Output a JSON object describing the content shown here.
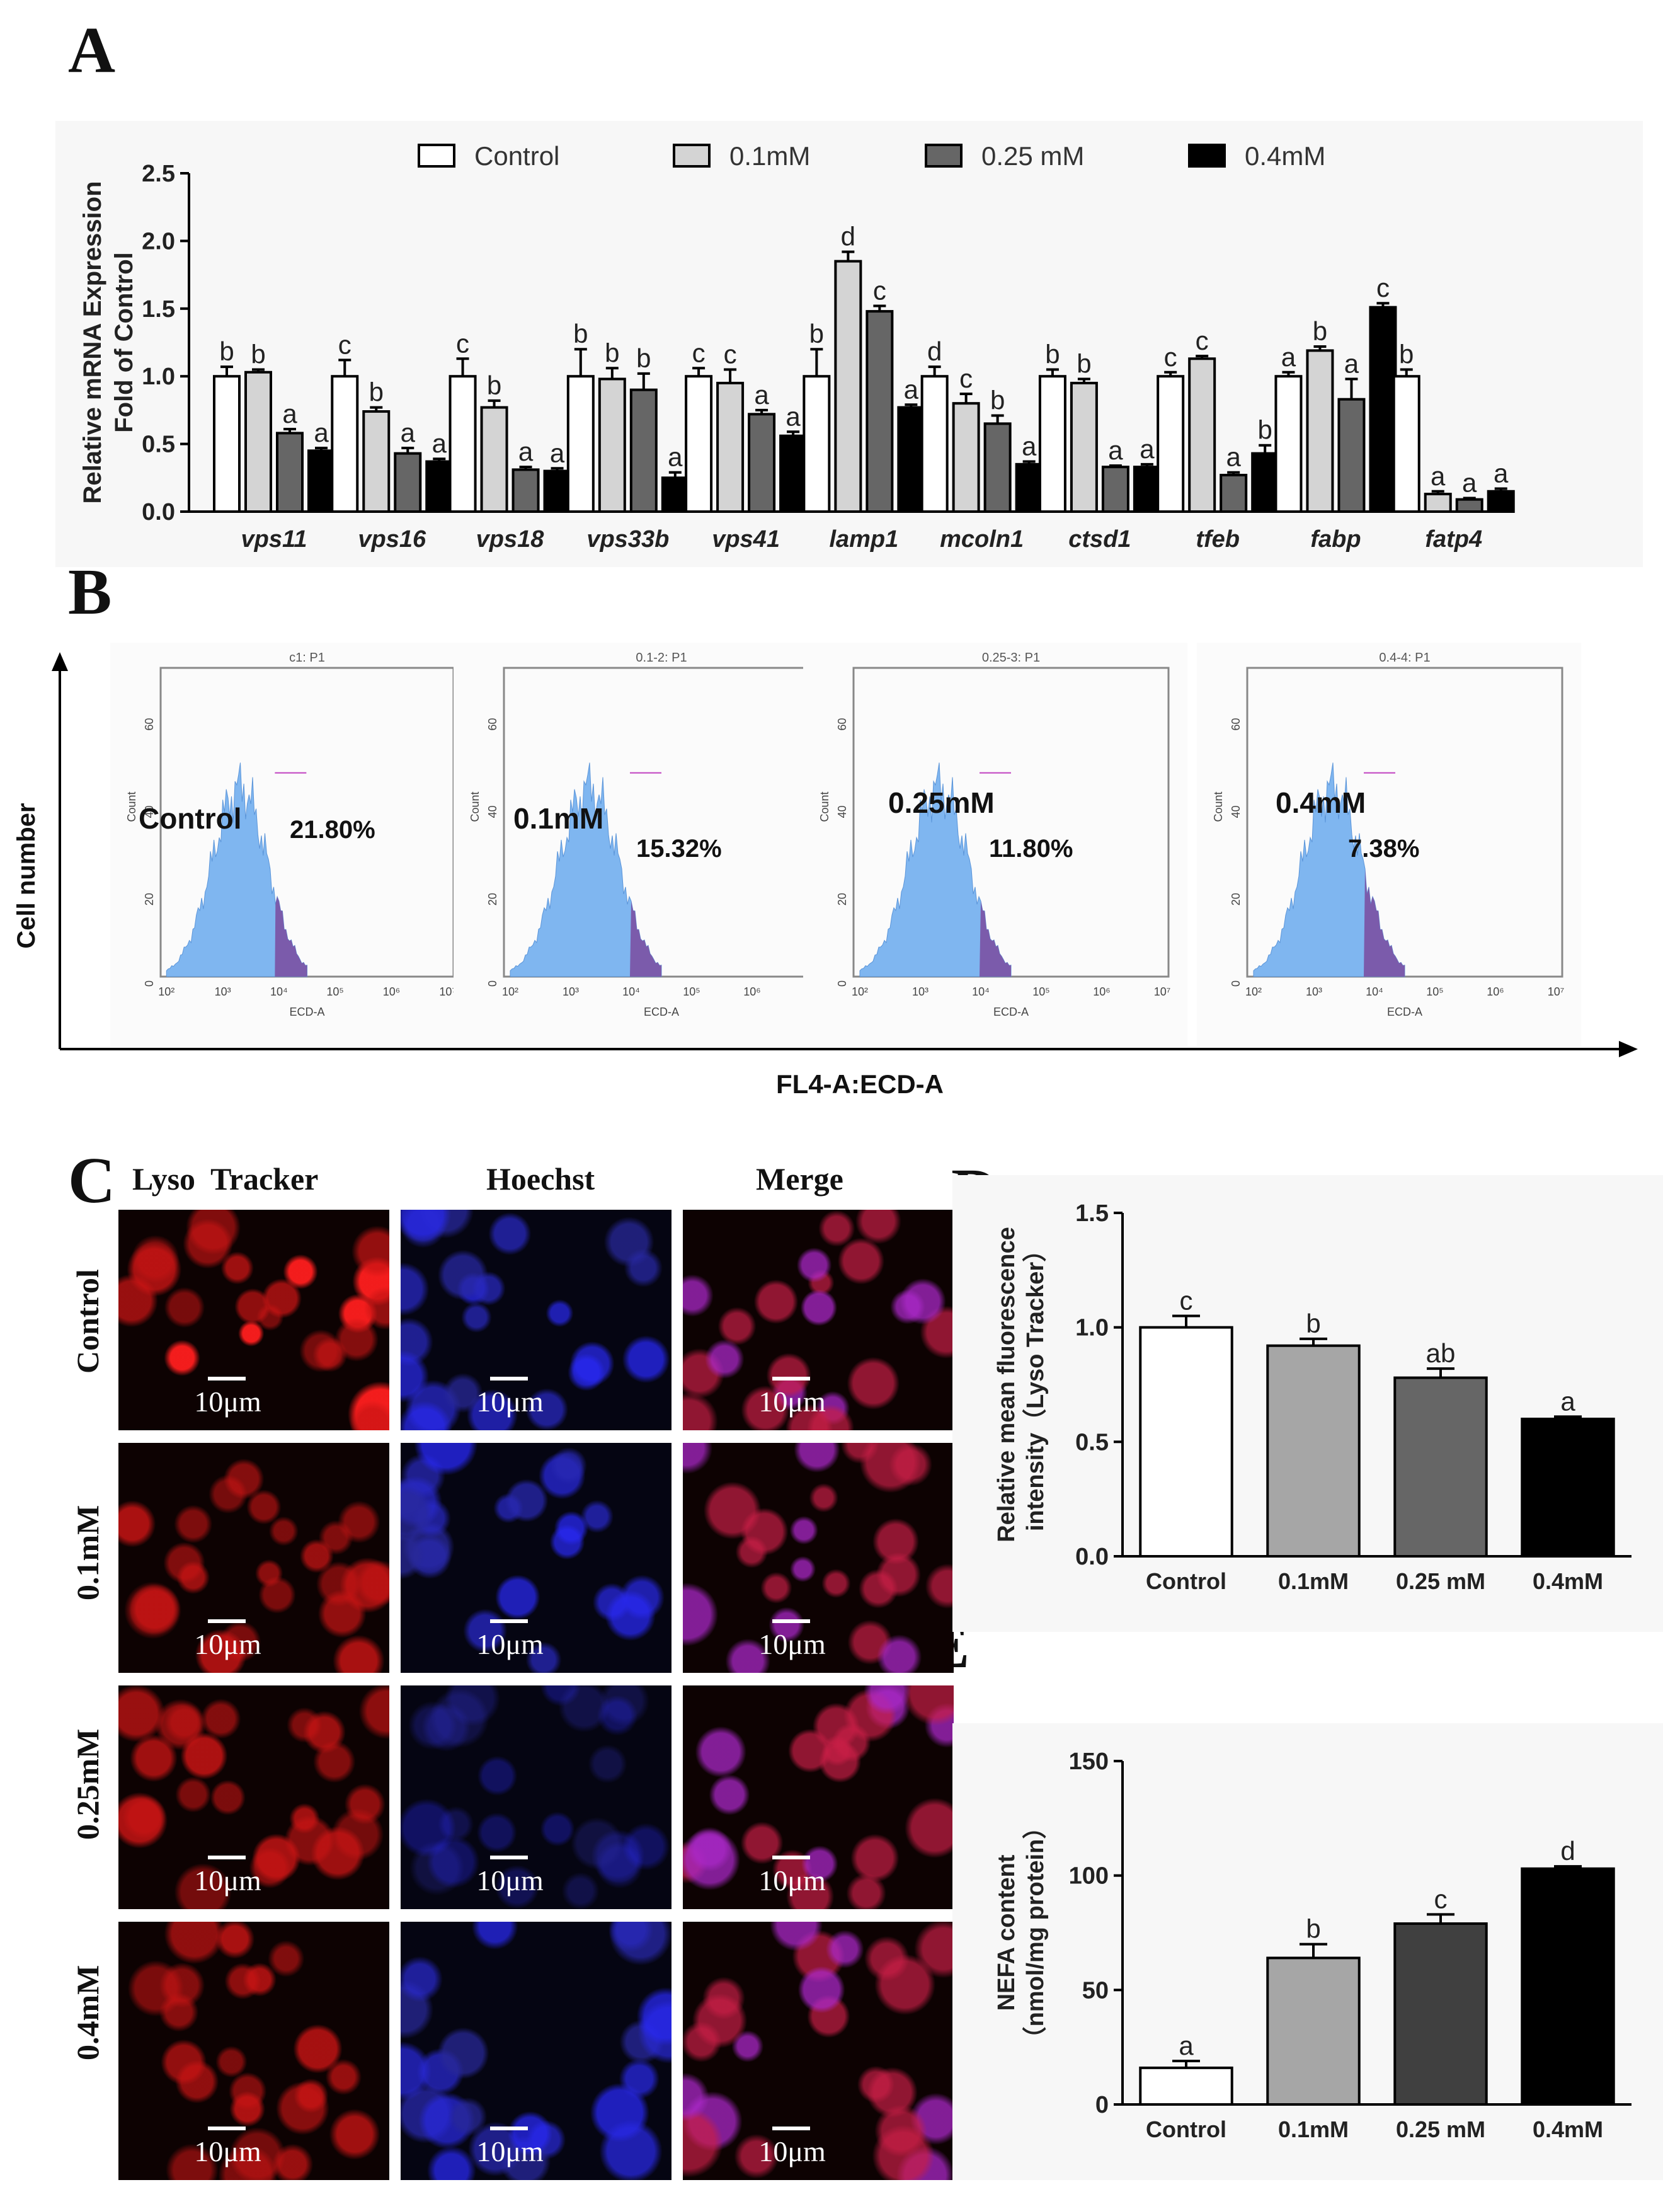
{
  "panels": {
    "a": "A",
    "b": "B",
    "c": "C",
    "d": "D",
    "e": "E"
  },
  "chart_data": [
    {
      "id": "A",
      "type": "bar",
      "ylabel": [
        "Relative mRNA Expression",
        "Fold of Control"
      ],
      "ylim": [
        0,
        2.5
      ],
      "yticks": [
        "0.0",
        "0.5",
        "1.0",
        "1.5",
        "2.0",
        "2.5"
      ],
      "legend": "top",
      "colors": [
        "#ffffff",
        "#d4d4d4",
        "#666666",
        "#000000"
      ],
      "categories": [
        "vps11",
        "vps16",
        "vps18",
        "vps33b",
        "vps41",
        "lamp1",
        "mcoln1",
        "ctsd1",
        "tfeb",
        "fabp",
        "fatp4"
      ],
      "series": [
        {
          "name": "Control",
          "values": [
            1.0,
            1.0,
            1.0,
            1.0,
            1.0,
            1.0,
            1.0,
            1.0,
            1.0,
            1.0,
            1.0
          ],
          "errors": [
            0.07,
            0.12,
            0.13,
            0.2,
            0.06,
            0.2,
            0.07,
            0.05,
            0.03,
            0.03,
            0.05
          ],
          "letters": [
            "b",
            "c",
            "c",
            "b",
            "c",
            "b",
            "d",
            "b",
            "c",
            "a",
            "b"
          ]
        },
        {
          "name": "0.1mM",
          "values": [
            1.03,
            0.74,
            0.77,
            0.98,
            0.95,
            1.85,
            0.8,
            0.95,
            1.13,
            1.19,
            0.13
          ],
          "errors": [
            0.02,
            0.03,
            0.05,
            0.08,
            0.1,
            0.07,
            0.07,
            0.03,
            0.02,
            0.03,
            0.02
          ],
          "letters": [
            "b",
            "b",
            "b",
            "b",
            "c",
            "d",
            "c",
            "b",
            "c",
            "b",
            "a"
          ]
        },
        {
          "name": "0.25 mM",
          "values": [
            0.58,
            0.43,
            0.31,
            0.9,
            0.72,
            1.48,
            0.65,
            0.33,
            0.27,
            0.83,
            0.09
          ],
          "errors": [
            0.03,
            0.04,
            0.02,
            0.12,
            0.03,
            0.04,
            0.06,
            0.01,
            0.02,
            0.15,
            0.01
          ],
          "letters": [
            "a",
            "a",
            "a",
            "b",
            "a",
            "c",
            "b",
            "a",
            "a",
            "a",
            "a"
          ]
        },
        {
          "name": "0.4mM",
          "values": [
            0.45,
            0.37,
            0.3,
            0.25,
            0.56,
            0.77,
            0.35,
            0.33,
            0.43,
            1.51,
            0.15
          ],
          "errors": [
            0.02,
            0.02,
            0.02,
            0.04,
            0.03,
            0.02,
            0.02,
            0.02,
            0.06,
            0.03,
            0.02
          ],
          "letters": [
            "a",
            "a",
            "a",
            "a",
            "a",
            "a",
            "a",
            "a",
            "b",
            "c",
            "a"
          ]
        }
      ]
    },
    {
      "id": "B",
      "type": "histogram",
      "ylabel": "Cell number",
      "xlabel": "FL4-A:ECD-A",
      "yticks": [
        "0",
        "20",
        "40",
        "60"
      ],
      "xticks": [
        "10²",
        "10³",
        "10⁴",
        "10⁵",
        "10⁶",
        "10⁷"
      ],
      "plots": [
        {
          "header": "c1: P1",
          "label": "Control",
          "percent": "21.80%",
          "ytitle": "Count",
          "xtitle": "ECD-A"
        },
        {
          "header": "0.1-2: P1",
          "label": "0.1mM",
          "percent": "15.32%",
          "ytitle": "Count",
          "xtitle": "ECD-A"
        },
        {
          "header": "0.25-3: P1",
          "label": "0.25mM",
          "percent": "11.80%",
          "ytitle": "Count",
          "xtitle": "ECD-A"
        },
        {
          "header": "0.4-4: P1",
          "label": "0.4mM",
          "percent": "7.38%",
          "ytitle": "Count",
          "xtitle": "ECD-A"
        }
      ]
    },
    {
      "id": "D",
      "type": "bar",
      "ylabel": [
        "Relative mean fluorescence",
        "intensity（Lyso Tracker）"
      ],
      "ylim": [
        0,
        1.5
      ],
      "yticks": [
        "0.0",
        "0.5",
        "1.0",
        "1.5"
      ],
      "categories": [
        "Control",
        "0.1mM",
        "0.25 mM",
        "0.4mM"
      ],
      "colors": [
        "#ffffff",
        "#a6a6a6",
        "#666666",
        "#000000"
      ],
      "values": [
        1.0,
        0.92,
        0.78,
        0.6
      ],
      "errors": [
        0.05,
        0.03,
        0.04,
        0.01
      ],
      "letters": [
        "c",
        "b",
        "ab",
        "a"
      ]
    },
    {
      "id": "E",
      "type": "bar",
      "ylabel": [
        "NEFA content",
        "（nmol/mg protein）"
      ],
      "ylim": [
        0,
        150
      ],
      "yticks": [
        "0",
        "50",
        "100",
        "150"
      ],
      "categories": [
        "Control",
        "0.1mM",
        "0.25 mM",
        "0.4mM"
      ],
      "colors": [
        "#ffffff",
        "#a6a6a6",
        "#404040",
        "#000000"
      ],
      "values": [
        16,
        64,
        79,
        103
      ],
      "errors": [
        3,
        6,
        4,
        1
      ],
      "letters": [
        "a",
        "b",
        "c",
        "d"
      ]
    }
  ],
  "micrographs": {
    "columns": [
      "Lyso  Tracker",
      "Hoechst",
      "Merge"
    ],
    "rows": [
      "Control",
      "0.1mM",
      "0.25mM",
      "0.4mM"
    ],
    "scale": "10μm"
  }
}
